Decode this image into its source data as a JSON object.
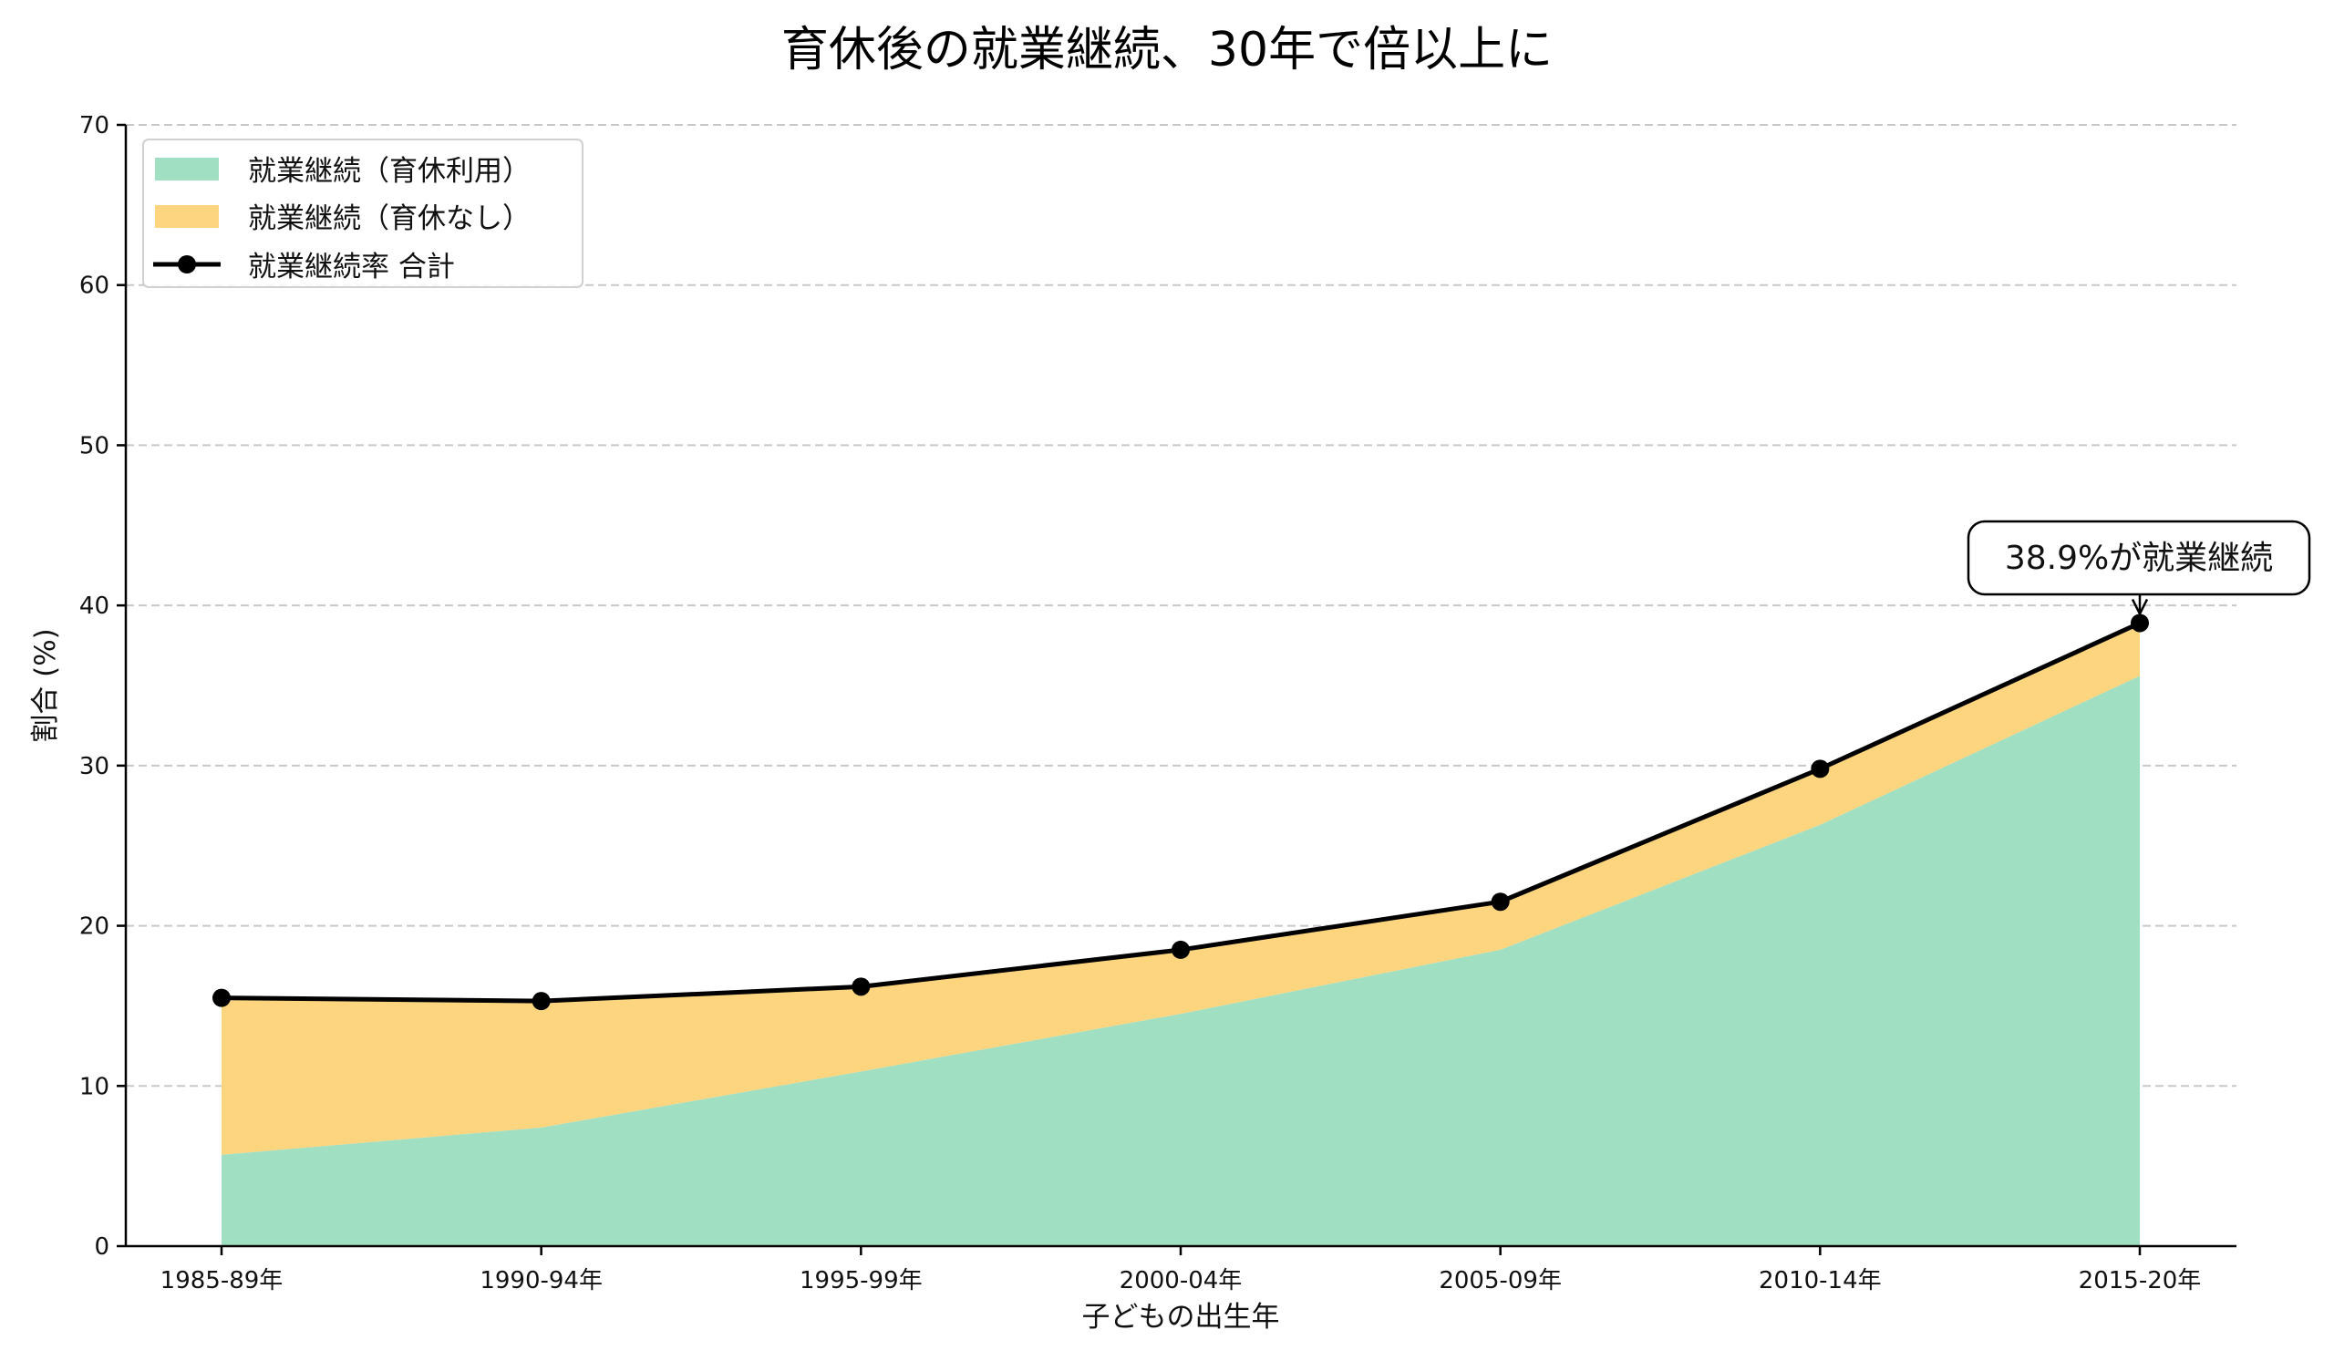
{
  "chart_data": {
    "type": "area",
    "title": "育休後の就業継続、30年で倍以上に",
    "xlabel": "子どもの出生年",
    "ylabel": "割合 (%)",
    "ylim": [
      0,
      70
    ],
    "yticks": [
      0,
      10,
      20,
      30,
      40,
      50,
      60,
      70
    ],
    "grid": "horizontal dashed",
    "legend_position": "upper left",
    "categories": [
      "1985-89年",
      "1990-94年",
      "1995-99年",
      "2000-04年",
      "2005-09年",
      "2010-14年",
      "2015-20年"
    ],
    "series": [
      {
        "name": "就業継続（育休利用）",
        "kind": "stacked-area",
        "color": "#a1dfc2",
        "values": [
          5.7,
          7.4,
          10.9,
          14.5,
          18.5,
          26.3,
          35.6
        ]
      },
      {
        "name": "就業継続（育休なし）",
        "kind": "stacked-area",
        "color": "#fdd57e",
        "values": [
          9.8,
          7.9,
          5.3,
          3.9,
          3.0,
          3.5,
          3.3
        ]
      },
      {
        "name": "就業継続率 合計",
        "kind": "line-marker",
        "color": "#000000",
        "values": [
          15.5,
          15.3,
          16.2,
          18.5,
          21.5,
          29.8,
          38.9
        ]
      }
    ],
    "annotations": [
      {
        "text": "38.9%が就業継続",
        "category": "2015-20年",
        "value": 38.9
      }
    ]
  }
}
